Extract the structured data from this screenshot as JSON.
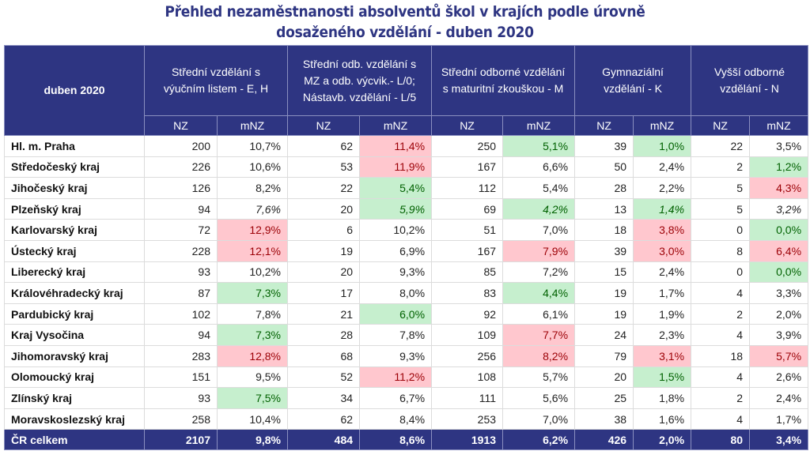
{
  "title_line1": "Přehled nezaměstnanosti absolventů škol v krajích podle úrovně",
  "title_line2": "dosaženého vzdělání - duben 2020",
  "corner_label": "duben 2020",
  "groups": [
    {
      "label": "Střední vzdělání s výučním listem - E, H"
    },
    {
      "label": "Střední odb. vzdělání s MZ a odb. výcvik.- L/0; Nástavb. vzdělání - L/5"
    },
    {
      "label": "Střední odborné vzdělání s maturitní zkouškou - M"
    },
    {
      "label": "Gymnaziální vzdělání - K"
    },
    {
      "label": "Vyšší odborné vzdělání - N"
    }
  ],
  "sub_headers": [
    "NZ",
    "mNZ",
    "NZ",
    "mNZ",
    "NZ",
    "mNZ",
    "NZ",
    "mNZ",
    "NZ",
    "mNZ"
  ],
  "colors": {
    "header_bg": "#2e3582",
    "red_bg": "#ffc7ce",
    "red_text": "#9c0006",
    "green_bg": "#c6efce",
    "green_text": "#006100"
  },
  "rows": [
    {
      "region": "Hl. m. Praha",
      "cells": [
        "200",
        "10,7%",
        "62",
        "11,4%",
        "250",
        "5,1%",
        "39",
        "1,0%",
        "22",
        "3,5%"
      ],
      "hl": [
        "",
        "",
        "",
        "r",
        "",
        "g",
        "",
        "g",
        "",
        ""
      ]
    },
    {
      "region": "Středočeský kraj",
      "cells": [
        "226",
        "10,6%",
        "53",
        "11,9%",
        "167",
        "6,6%",
        "50",
        "2,4%",
        "2",
        "1,2%"
      ],
      "hl": [
        "",
        "",
        "",
        "r",
        "",
        "",
        "",
        "",
        "",
        "g"
      ]
    },
    {
      "region": "Jihočeský kraj",
      "cells": [
        "126",
        "8,2%",
        "22",
        "5,4%",
        "112",
        "5,4%",
        "28",
        "2,2%",
        "5",
        "4,3%"
      ],
      "hl": [
        "",
        "",
        "",
        "g",
        "",
        "",
        "",
        "",
        "",
        "r"
      ]
    },
    {
      "region": "Plzeňský kraj",
      "italic": true,
      "cells": [
        "94",
        "7,6%",
        "20",
        "5,9%",
        "69",
        "4,2%",
        "13",
        "1,4%",
        "5",
        "3,2%"
      ],
      "hl": [
        "",
        "",
        "",
        "g",
        "",
        "g",
        "",
        "g",
        "",
        ""
      ]
    },
    {
      "region": "Karlovarský kraj",
      "cells": [
        "72",
        "12,9%",
        "6",
        "10,2%",
        "51",
        "7,0%",
        "18",
        "3,8%",
        "0",
        "0,0%"
      ],
      "hl": [
        "",
        "r",
        "",
        "",
        "",
        "",
        "",
        "r",
        "",
        "g"
      ]
    },
    {
      "region": "Ústecký kraj",
      "cells": [
        "228",
        "12,1%",
        "19",
        "6,9%",
        "167",
        "7,9%",
        "39",
        "3,0%",
        "8",
        "6,4%"
      ],
      "hl": [
        "",
        "r",
        "",
        "",
        "",
        "r",
        "",
        "r",
        "",
        "r"
      ]
    },
    {
      "region": "Liberecký kraj",
      "cells": [
        "93",
        "10,2%",
        "20",
        "9,3%",
        "85",
        "7,2%",
        "15",
        "2,4%",
        "0",
        "0,0%"
      ],
      "hl": [
        "",
        "",
        "",
        "",
        "",
        "",
        "",
        "",
        "",
        "g"
      ]
    },
    {
      "region": "Královéhradecký kraj",
      "cells": [
        "87",
        "7,3%",
        "17",
        "8,0%",
        "83",
        "4,4%",
        "19",
        "1,7%",
        "4",
        "3,3%"
      ],
      "hl": [
        "",
        "g",
        "",
        "",
        "",
        "g",
        "",
        "",
        "",
        ""
      ]
    },
    {
      "region": "Pardubický kraj",
      "cells": [
        "102",
        "7,8%",
        "21",
        "6,0%",
        "92",
        "6,1%",
        "19",
        "1,9%",
        "2",
        "2,0%"
      ],
      "hl": [
        "",
        "",
        "",
        "g",
        "",
        "",
        "",
        "",
        "",
        ""
      ]
    },
    {
      "region": "Kraj Vysočina",
      "cells": [
        "94",
        "7,3%",
        "28",
        "7,8%",
        "109",
        "7,7%",
        "24",
        "2,3%",
        "4",
        "3,9%"
      ],
      "hl": [
        "",
        "g",
        "",
        "",
        "",
        "r",
        "",
        "",
        "",
        ""
      ]
    },
    {
      "region": "Jihomoravský kraj",
      "cells": [
        "283",
        "12,8%",
        "68",
        "9,3%",
        "256",
        "8,2%",
        "79",
        "3,1%",
        "18",
        "5,7%"
      ],
      "hl": [
        "",
        "r",
        "",
        "",
        "",
        "r",
        "",
        "r",
        "",
        "r"
      ]
    },
    {
      "region": "Olomoucký kraj",
      "cells": [
        "151",
        "9,5%",
        "52",
        "11,2%",
        "108",
        "5,7%",
        "20",
        "1,5%",
        "4",
        "2,6%"
      ],
      "hl": [
        "",
        "",
        "",
        "r",
        "",
        "",
        "",
        "g",
        "",
        ""
      ]
    },
    {
      "region": "Zlínský kraj",
      "cells": [
        "93",
        "7,5%",
        "34",
        "6,7%",
        "111",
        "5,6%",
        "25",
        "1,8%",
        "2",
        "2,4%"
      ],
      "hl": [
        "",
        "g",
        "",
        "",
        "",
        "",
        "",
        "",
        "",
        ""
      ]
    },
    {
      "region": "Moravskoslezský kraj",
      "cells": [
        "258",
        "10,4%",
        "62",
        "8,4%",
        "253",
        "7,0%",
        "38",
        "1,6%",
        "4",
        "1,7%"
      ],
      "hl": [
        "",
        "",
        "",
        "",
        "",
        "",
        "",
        "",
        "",
        ""
      ]
    }
  ],
  "total": {
    "region": "ČR celkem",
    "cells": [
      "2107",
      "9,8%",
      "484",
      "8,6%",
      "1913",
      "6,2%",
      "426",
      "2,0%",
      "80",
      "3,4%"
    ]
  }
}
